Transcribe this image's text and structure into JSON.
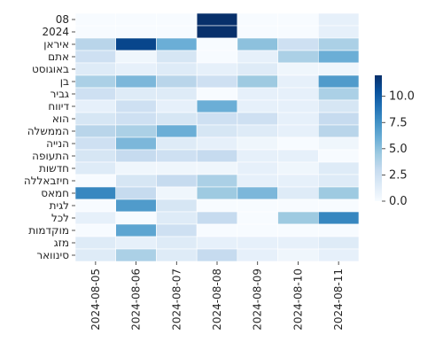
{
  "chart_data": {
    "type": "heatmap",
    "title": "",
    "xlabel": "",
    "ylabel": "",
    "x_categories": [
      "2024-08-05",
      "2024-08-06",
      "2024-08-07",
      "2024-08-08",
      "2024-08-09",
      "2024-08-10",
      "2024-08-11"
    ],
    "y_categories": [
      "08",
      "2024",
      "איראן",
      "אתם",
      "באוגוסט",
      "בן",
      "גביר",
      "דיווח",
      "הוא",
      "הממשלה",
      "הנייה",
      "התעופה",
      "חדשות",
      "חיזבאללה",
      "חמאס",
      "לגית",
      "לכל",
      "מוקדמות",
      "מזג",
      "סינוואר"
    ],
    "values": [
      [
        0,
        0,
        0,
        12,
        0,
        0,
        1
      ],
      [
        0,
        0,
        0,
        12,
        0,
        0,
        1
      ],
      [
        3.5,
        11,
        6,
        0,
        5,
        2.5,
        4
      ],
      [
        2.5,
        0.5,
        2,
        0,
        1,
        4,
        6
      ],
      [
        1.5,
        1,
        1.5,
        1,
        1.5,
        0.5,
        0.5
      ],
      [
        4,
        5.5,
        3.5,
        2.5,
        4.5,
        1,
        7
      ],
      [
        2.5,
        1.5,
        1.5,
        0,
        1,
        1,
        4
      ],
      [
        1,
        2.5,
        1,
        6,
        1,
        1,
        2
      ],
      [
        2,
        2.5,
        2,
        2.5,
        2.5,
        1,
        3
      ],
      [
        3.5,
        4,
        6,
        2,
        1.5,
        1,
        3.5
      ],
      [
        2.5,
        5.5,
        1.5,
        1,
        0.5,
        0,
        0.5
      ],
      [
        2,
        3,
        2.5,
        3,
        1,
        1,
        0
      ],
      [
        1.5,
        0.5,
        0.5,
        0.5,
        1,
        0.5,
        1.5
      ],
      [
        0,
        2,
        3,
        4,
        1,
        1,
        1.5
      ],
      [
        8,
        3,
        0.5,
        4.5,
        5.5,
        1.5,
        4.5
      ],
      [
        0,
        7,
        2,
        0,
        0,
        0,
        0
      ],
      [
        1,
        0,
        1.5,
        3,
        0,
        4.5,
        8
      ],
      [
        0,
        6.5,
        2.5,
        0,
        0,
        0,
        0
      ],
      [
        1.5,
        1,
        1.5,
        1,
        1,
        1,
        1.5
      ],
      [
        1.5,
        4,
        1.5,
        3,
        1,
        0.5,
        1
      ]
    ],
    "colorbar": {
      "min": 0,
      "max": 12,
      "ticks": [
        0.0,
        2.5,
        5.0,
        7.5,
        10.0
      ],
      "tick_labels": [
        "0.0",
        "2.5",
        "5.0",
        "7.5",
        "10.0"
      ]
    },
    "colormap": [
      "#f7fbff",
      "#deebf7",
      "#c6dbef",
      "#9ecae1",
      "#6baed6",
      "#4292c6",
      "#2171b5",
      "#08519c",
      "#08306b"
    ],
    "grid_color": "#ffffff"
  }
}
